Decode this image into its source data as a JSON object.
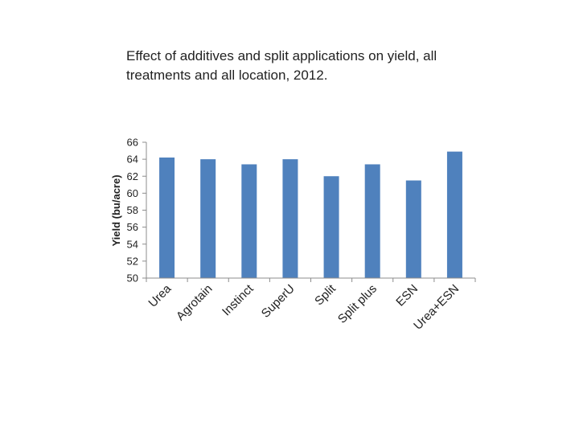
{
  "chart_data": {
    "type": "bar",
    "title_lines": [
      "Effect of additives and split applications on yield, all",
      "treatments and all location, 2012."
    ],
    "ylabel": "Yield (bu/acre)",
    "xlabel": "",
    "categories": [
      "Urea",
      "Agrotain",
      "Instinct",
      "SuperU",
      "Split",
      "Split plus",
      "ESN",
      "Urea+ESN"
    ],
    "values": [
      64.2,
      64.0,
      63.4,
      64.0,
      62.0,
      63.4,
      61.5,
      64.9
    ],
    "ylim": [
      50,
      66
    ],
    "yticks": [
      50,
      52,
      54,
      56,
      58,
      60,
      62,
      64,
      66
    ],
    "grid": false,
    "legend": "none",
    "bar_color": "#4f81bd"
  }
}
